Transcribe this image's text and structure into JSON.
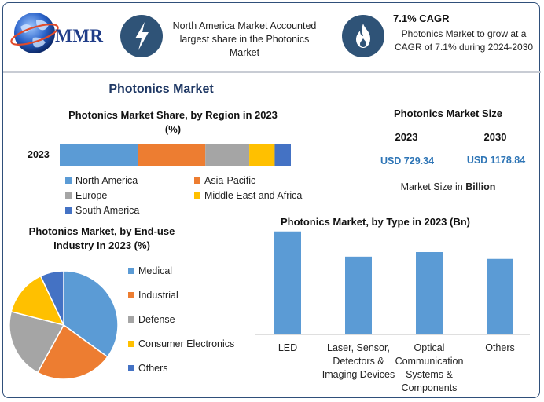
{
  "brand": {
    "logo_text": "MMR"
  },
  "banner": {
    "box1": {
      "text": "North America Market Accounted largest share in the Photonics Market",
      "icon": "lightning-icon"
    },
    "box2": {
      "title": "7.1% CAGR",
      "text": "Photonics Market to grow at a CAGR of 7.1% during 2024-2030",
      "icon": "flame-icon"
    }
  },
  "main_title": "Photonics Market",
  "region_chart": {
    "title_line1": "Photonics Market Share, by Region in 2023",
    "title_line2": "(%)"
  },
  "market_size": {
    "title": "Photonics Market Size",
    "years": [
      "2023",
      "2030"
    ],
    "values": [
      "USD 729.34",
      "USD 1178.84"
    ],
    "note_prefix": "Market Size in ",
    "note_bold": "Billion"
  },
  "enduse_chart": {
    "title_line1": "Photonics Market, by End-use",
    "title_line2": "Industry In 2023 (%)"
  },
  "type_chart": {
    "title": "Photonics Market, by Type in 2023 (Bn)"
  },
  "colors": {
    "blue": "#5b9bd5",
    "orange": "#ed7d31",
    "gray": "#a5a5a5",
    "gold": "#ffc000",
    "darkblue": "#4472c4",
    "navy": "#2f5377"
  },
  "chart_data": [
    {
      "type": "bar",
      "orientation": "horizontal-stacked",
      "categories": [
        "2023"
      ],
      "series": [
        {
          "name": "North America",
          "values": [
            34
          ]
        },
        {
          "name": "Asia-Pacific",
          "values": [
            29
          ]
        },
        {
          "name": "Europe",
          "values": [
            19
          ]
        },
        {
          "name": "Middle East and Africa",
          "values": [
            11
          ]
        },
        {
          "name": "South America",
          "values": [
            7
          ]
        }
      ],
      "xlim": [
        0,
        100
      ],
      "legend": "bottom"
    },
    {
      "type": "pie",
      "labels": [
        "Medical",
        "Industrial",
        "Defense",
        "Consumer Electronics",
        "Others"
      ],
      "values": [
        35,
        23,
        21,
        14,
        7
      ],
      "legend": "right"
    },
    {
      "type": "bar",
      "categories": [
        "LED",
        "Laser, Sensor, Detectors & Imaging Devices",
        "Optical Communication Systems & Components",
        "Others"
      ],
      "category_lines": [
        [
          "LED"
        ],
        [
          "Laser, Sensor,",
          "Detectors &",
          "Imaging Devices"
        ],
        [
          "Optical",
          "Communication",
          "Systems &",
          "Components"
        ],
        [
          "Others"
        ]
      ],
      "values": [
        225,
        170,
        180,
        165
      ],
      "ylim": [
        0,
        240
      ],
      "grid": false
    }
  ]
}
